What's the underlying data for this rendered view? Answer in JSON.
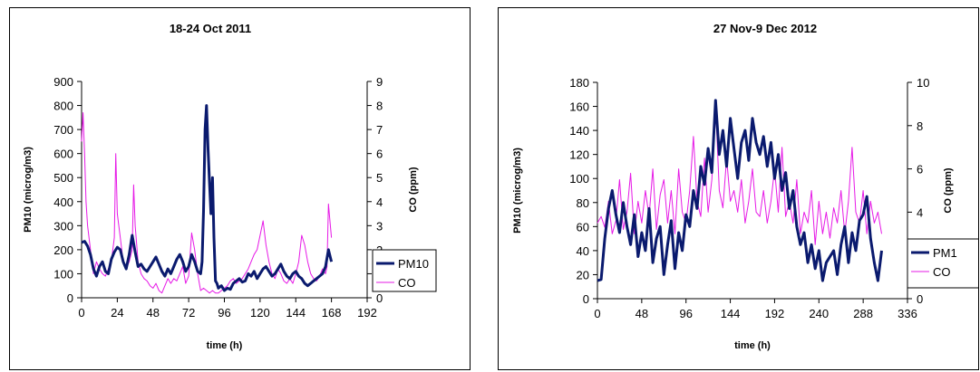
{
  "chart_data": [
    {
      "type": "line",
      "title": "18-24 Oct 2011",
      "xlabel": "time (h)",
      "ylabel": "PM10 (microg/m3)",
      "y2label": "CO (ppm)",
      "xlim": [
        0,
        192
      ],
      "xticks": [
        0,
        24,
        48,
        72,
        96,
        120,
        144,
        168,
        192
      ],
      "ylim": [
        0,
        900
      ],
      "yticks": [
        0,
        100,
        200,
        300,
        400,
        500,
        600,
        700,
        800,
        900
      ],
      "y2lim": [
        0,
        9
      ],
      "y2ticks": [
        0,
        1,
        2,
        3,
        4,
        5,
        6,
        7,
        8,
        9
      ],
      "legend_position": "right",
      "grid": false,
      "series": [
        {
          "name": "PM10",
          "axis": "left",
          "color": "#0a1a6e",
          "width": 3,
          "x": [
            0,
            2,
            4,
            6,
            8,
            10,
            12,
            14,
            16,
            18,
            20,
            22,
            24,
            26,
            28,
            30,
            32,
            34,
            36,
            38,
            40,
            42,
            44,
            46,
            48,
            50,
            52,
            54,
            56,
            58,
            60,
            62,
            64,
            66,
            68,
            70,
            72,
            74,
            76,
            78,
            80,
            81,
            82,
            83,
            84,
            85,
            86,
            87,
            88,
            89,
            90,
            91,
            92,
            94,
            96,
            98,
            100,
            102,
            104,
            106,
            108,
            110,
            112,
            114,
            116,
            118,
            120,
            122,
            124,
            126,
            128,
            130,
            132,
            134,
            136,
            138,
            140,
            142,
            144,
            146,
            148,
            150,
            152,
            154,
            156,
            158,
            160,
            162,
            164,
            166,
            168
          ],
          "values": [
            230,
            235,
            215,
            180,
            120,
            90,
            130,
            150,
            110,
            100,
            160,
            190,
            210,
            200,
            150,
            120,
            180,
            260,
            190,
            130,
            140,
            120,
            110,
            130,
            150,
            170,
            140,
            110,
            90,
            120,
            100,
            130,
            160,
            180,
            150,
            110,
            130,
            180,
            150,
            110,
            100,
            150,
            360,
            700,
            800,
            620,
            480,
            350,
            500,
            250,
            70,
            60,
            40,
            50,
            30,
            40,
            35,
            60,
            70,
            80,
            65,
            70,
            100,
            90,
            110,
            80,
            100,
            120,
            130,
            110,
            90,
            100,
            120,
            140,
            110,
            90,
            80,
            100,
            110,
            90,
            80,
            60,
            50,
            60,
            70,
            80,
            90,
            100,
            130,
            200,
            150
          ]
        },
        {
          "name": "CO",
          "axis": "right",
          "color": "#e619e6",
          "width": 1,
          "x": [
            0,
            1,
            2,
            3,
            4,
            6,
            8,
            10,
            12,
            14,
            16,
            18,
            20,
            22,
            23,
            24,
            26,
            28,
            30,
            32,
            34,
            35,
            36,
            38,
            40,
            42,
            44,
            46,
            48,
            50,
            52,
            54,
            56,
            58,
            60,
            62,
            64,
            66,
            68,
            70,
            72,
            74,
            76,
            78,
            80,
            82,
            84,
            86,
            88,
            90,
            92,
            94,
            96,
            98,
            100,
            102,
            104,
            106,
            108,
            110,
            112,
            114,
            116,
            118,
            120,
            122,
            124,
            126,
            128,
            130,
            132,
            134,
            136,
            138,
            140,
            142,
            144,
            146,
            148,
            150,
            152,
            154,
            156,
            158,
            160,
            162,
            164,
            165,
            166,
            168
          ],
          "values": [
            6.5,
            7.7,
            6.0,
            4.0,
            3.0,
            2.0,
            1.0,
            1.5,
            1.2,
            1.0,
            0.9,
            1.2,
            1.5,
            2.5,
            6.0,
            3.5,
            2.5,
            1.5,
            1.2,
            1.5,
            2.0,
            4.7,
            3.0,
            1.5,
            1.0,
            0.8,
            0.7,
            0.5,
            0.4,
            0.6,
            0.3,
            0.2,
            0.5,
            0.8,
            0.6,
            0.8,
            0.7,
            1.0,
            1.3,
            0.6,
            0.9,
            2.7,
            2.0,
            1.0,
            0.3,
            0.4,
            0.3,
            0.2,
            0.3,
            0.2,
            0.2,
            0.3,
            0.4,
            0.5,
            0.7,
            0.8,
            0.6,
            0.7,
            0.8,
            1.0,
            1.2,
            1.5,
            1.8,
            2.0,
            2.6,
            3.2,
            2.2,
            1.5,
            1.0,
            0.8,
            1.2,
            1.0,
            0.7,
            0.6,
            0.8,
            0.6,
            1.0,
            1.5,
            2.6,
            2.2,
            1.5,
            1.0,
            0.8,
            0.7,
            0.9,
            1.2,
            1.0,
            1.3,
            3.9,
            2.5
          ]
        }
      ]
    },
    {
      "type": "line",
      "title": "27 Nov-9 Dec 2012",
      "xlabel": "time (h)",
      "ylabel": "PM10 (microg/m3)",
      "y2label": "CO (ppm)",
      "xlim": [
        0,
        336
      ],
      "xticks": [
        0,
        48,
        96,
        144,
        192,
        240,
        288,
        336
      ],
      "ylim": [
        0,
        180
      ],
      "yticks": [
        0,
        20,
        40,
        60,
        80,
        100,
        120,
        140,
        160,
        180
      ],
      "y2lim": [
        0,
        10
      ],
      "y2ticks": [
        0,
        2,
        4,
        6,
        8,
        10
      ],
      "legend_position": "right",
      "legend_labels_visible": [
        "PM1",
        "CO"
      ],
      "grid": false,
      "series": [
        {
          "name": "PM10",
          "axis": "left",
          "color": "#0a1a6e",
          "width": 3,
          "x": [
            0,
            4,
            8,
            12,
            16,
            20,
            24,
            28,
            32,
            36,
            40,
            44,
            48,
            52,
            56,
            60,
            64,
            68,
            72,
            76,
            80,
            84,
            88,
            92,
            96,
            100,
            104,
            108,
            112,
            116,
            120,
            124,
            128,
            132,
            136,
            140,
            144,
            148,
            152,
            156,
            160,
            164,
            168,
            172,
            176,
            180,
            184,
            188,
            192,
            196,
            200,
            204,
            208,
            212,
            216,
            220,
            224,
            228,
            232,
            236,
            240,
            244,
            248,
            252,
            256,
            260,
            264,
            268,
            272,
            276,
            280,
            284,
            288,
            292,
            296,
            300,
            304,
            308
          ],
          "values": [
            15,
            16,
            50,
            75,
            90,
            70,
            55,
            80,
            60,
            45,
            70,
            35,
            55,
            40,
            75,
            30,
            50,
            60,
            20,
            45,
            65,
            25,
            55,
            40,
            70,
            60,
            90,
            75,
            110,
            95,
            125,
            105,
            165,
            120,
            140,
            110,
            150,
            125,
            100,
            130,
            140,
            115,
            150,
            130,
            120,
            135,
            110,
            130,
            100,
            120,
            90,
            105,
            75,
            90,
            60,
            45,
            55,
            30,
            45,
            25,
            40,
            15,
            30,
            35,
            40,
            20,
            45,
            60,
            30,
            55,
            40,
            65,
            70,
            85,
            50,
            30,
            15,
            40
          ]
        },
        {
          "name": "CO",
          "axis": "right",
          "color": "#e619e6",
          "width": 1,
          "x": [
            0,
            4,
            8,
            12,
            16,
            20,
            24,
            28,
            32,
            36,
            40,
            44,
            48,
            52,
            56,
            60,
            64,
            68,
            72,
            76,
            80,
            84,
            88,
            92,
            96,
            100,
            104,
            108,
            112,
            116,
            120,
            124,
            128,
            132,
            136,
            140,
            144,
            148,
            152,
            156,
            160,
            164,
            168,
            172,
            176,
            180,
            184,
            188,
            192,
            196,
            200,
            204,
            208,
            212,
            216,
            220,
            224,
            228,
            232,
            236,
            240,
            244,
            248,
            252,
            256,
            260,
            264,
            268,
            272,
            276,
            280,
            284,
            288,
            292,
            296,
            300,
            304,
            308
          ],
          "values": [
            3.5,
            3.8,
            3.3,
            4.5,
            3.0,
            3.6,
            5.5,
            3.2,
            4.0,
            5.8,
            3.0,
            4.5,
            3.5,
            5.0,
            3.8,
            6.0,
            3.2,
            4.8,
            5.5,
            3.5,
            5.0,
            3.0,
            6.0,
            4.0,
            3.5,
            5.0,
            7.5,
            4.5,
            3.8,
            6.5,
            4.0,
            5.5,
            9.0,
            5.0,
            4.2,
            6.5,
            4.5,
            5.0,
            4.0,
            5.5,
            3.5,
            4.5,
            6.0,
            4.0,
            3.8,
            5.0,
            3.5,
            4.5,
            6.0,
            4.0,
            7.0,
            3.8,
            4.5,
            3.5,
            5.5,
            3.0,
            4.0,
            3.5,
            5.0,
            2.5,
            4.5,
            3.0,
            4.0,
            2.8,
            4.2,
            3.5,
            5.0,
            3.0,
            4.5,
            7.0,
            4.0,
            3.5,
            5.0,
            3.0,
            4.5,
            3.5,
            4.0,
            3.0
          ]
        }
      ]
    }
  ]
}
